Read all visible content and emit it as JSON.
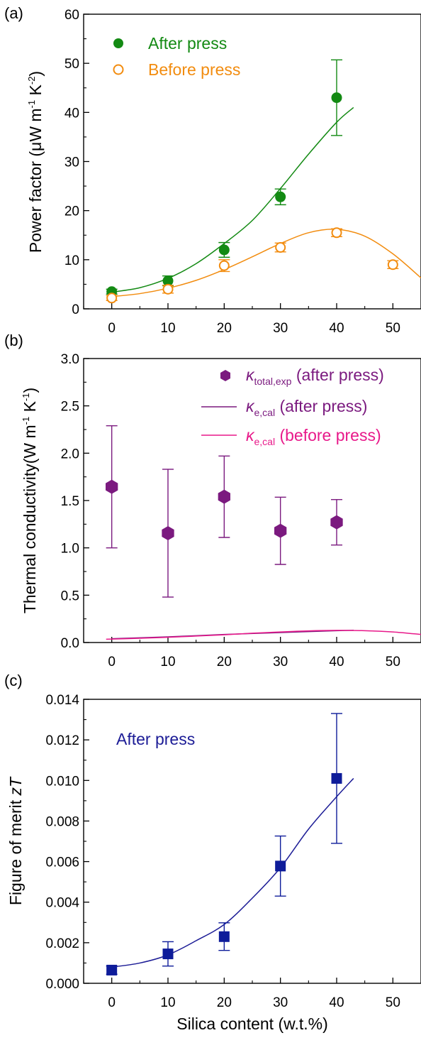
{
  "chart_data": [
    {
      "panel_label": "(a)",
      "type": "scatter",
      "ylabel_prefix": "Power factor (μW m",
      "ylabel_sup1": "-1",
      "ylabel_mid": " K",
      "ylabel_sup2": "-2",
      "ylabel_suffix": ")",
      "xlim": [
        -5,
        55
      ],
      "ylim": [
        0,
        60
      ],
      "xticks": [
        0,
        10,
        20,
        30,
        40,
        50
      ],
      "yticks": [
        0,
        10,
        20,
        30,
        40,
        50,
        60
      ],
      "legend_position": "top-left",
      "series": [
        {
          "name": "After press",
          "color": "#138a13",
          "marker": "filled-circle",
          "x": [
            0,
            10,
            20,
            30,
            40
          ],
          "y": [
            3.5,
            5.7,
            12.0,
            22.8,
            43.0
          ],
          "err": [
            0.5,
            1.0,
            1.5,
            1.6,
            7.7
          ],
          "fit": {
            "color": "#138a13",
            "x": [
              0,
              5,
              10,
              15,
              20,
              25,
              30,
              35,
              40,
              43
            ],
            "y": [
              3.4,
              4.3,
              6.2,
              9.2,
              13.3,
              18.0,
              24.5,
              31.5,
              38.0,
              41.0
            ]
          }
        },
        {
          "name": "Before press",
          "color": "#f28c0f",
          "marker": "open-circle",
          "x": [
            0,
            10,
            20,
            30,
            40,
            50
          ],
          "y": [
            2.2,
            4.0,
            8.8,
            12.5,
            15.5,
            9.0
          ],
          "err": [
            0.5,
            0.8,
            1.2,
            0.9,
            0.8,
            0.8
          ],
          "fit": {
            "color": "#f28c0f",
            "x": [
              0,
              5,
              10,
              15,
              20,
              25,
              30,
              35,
              40,
              45,
              50,
              55
            ],
            "y": [
              2.5,
              3.1,
              4.2,
              5.8,
              8.0,
              10.6,
              13.3,
              15.5,
              16.2,
              14.8,
              11.2,
              6.3
            ]
          }
        }
      ]
    },
    {
      "panel_label": "(b)",
      "type": "scatter",
      "ylabel_prefix": "Thermal conductivity(W m",
      "ylabel_sup1": "-1",
      "ylabel_mid": " K",
      "ylabel_sup2": "-1",
      "ylabel_suffix": ")",
      "xlim": [
        -5,
        55
      ],
      "ylim": [
        0,
        3.0
      ],
      "xticks": [
        0,
        10,
        20,
        30,
        40,
        50
      ],
      "yticks": [
        0.0,
        0.5,
        1.0,
        1.5,
        2.0,
        2.5,
        3.0
      ],
      "legend_position": "top-right",
      "series": [
        {
          "name_symbol": "κ",
          "name_sub": "total,exp",
          "name_suffix": " (after press)",
          "color": "#7b1a7f",
          "marker": "filled-hexagon",
          "x": [
            0,
            10,
            20,
            30,
            40
          ],
          "y": [
            1.645,
            1.155,
            1.54,
            1.18,
            1.27
          ],
          "err": [
            0.645,
            0.675,
            0.43,
            0.355,
            0.24
          ]
        },
        {
          "name_symbol": "κ",
          "name_sub": "e,cal",
          "name_suffix": " (after press)",
          "color": "#7b1a7f",
          "marker": "line",
          "line": {
            "x": [
              0,
              10,
              20,
              30,
              40,
              43
            ],
            "y": [
              0.04,
              0.06,
              0.085,
              0.105,
              0.125,
              0.13
            ]
          }
        },
        {
          "name_symbol": "κ",
          "name_sub": "e,cal",
          "name_suffix": " (before press)",
          "color": "#e8198a",
          "marker": "line",
          "line": {
            "x": [
              -1,
              5,
              10,
              15,
              20,
              25,
              30,
              35,
              40,
              45,
              50,
              55
            ],
            "y": [
              0.035,
              0.045,
              0.055,
              0.068,
              0.082,
              0.098,
              0.112,
              0.123,
              0.128,
              0.125,
              0.112,
              0.085
            ]
          }
        }
      ]
    },
    {
      "panel_label": "(c)",
      "type": "scatter",
      "ylabel_prefix": "Figure of merit  ",
      "ylabel_italic": "zT",
      "annotation": "After press",
      "annotation_color": "#1c1c96",
      "xlabel": "Silica content (w.t.%)",
      "xlim": [
        -5,
        55
      ],
      "ylim": [
        0,
        0.014
      ],
      "xticks": [
        0,
        10,
        20,
        30,
        40,
        50
      ],
      "yticks": [
        "0.000",
        "0.002",
        "0.004",
        "0.006",
        "0.008",
        "0.010",
        "0.012",
        "0.014"
      ],
      "series": [
        {
          "color": "#0e1c9a",
          "marker": "filled-square",
          "x": [
            0,
            10,
            20,
            30,
            40
          ],
          "y": [
            0.00065,
            0.00145,
            0.0023,
            0.00578,
            0.0101
          ],
          "err": [
            0.0002,
            0.0006,
            0.00068,
            0.00148,
            0.0032
          ],
          "fit": {
            "color": "#1c1c96",
            "x": [
              0,
              5,
              10,
              15,
              20,
              25,
              30,
              35,
              40,
              43
            ],
            "y": [
              0.0008,
              0.001,
              0.0014,
              0.0021,
              0.0029,
              0.0042,
              0.0057,
              0.0076,
              0.0092,
              0.0101
            ]
          }
        }
      ]
    }
  ]
}
